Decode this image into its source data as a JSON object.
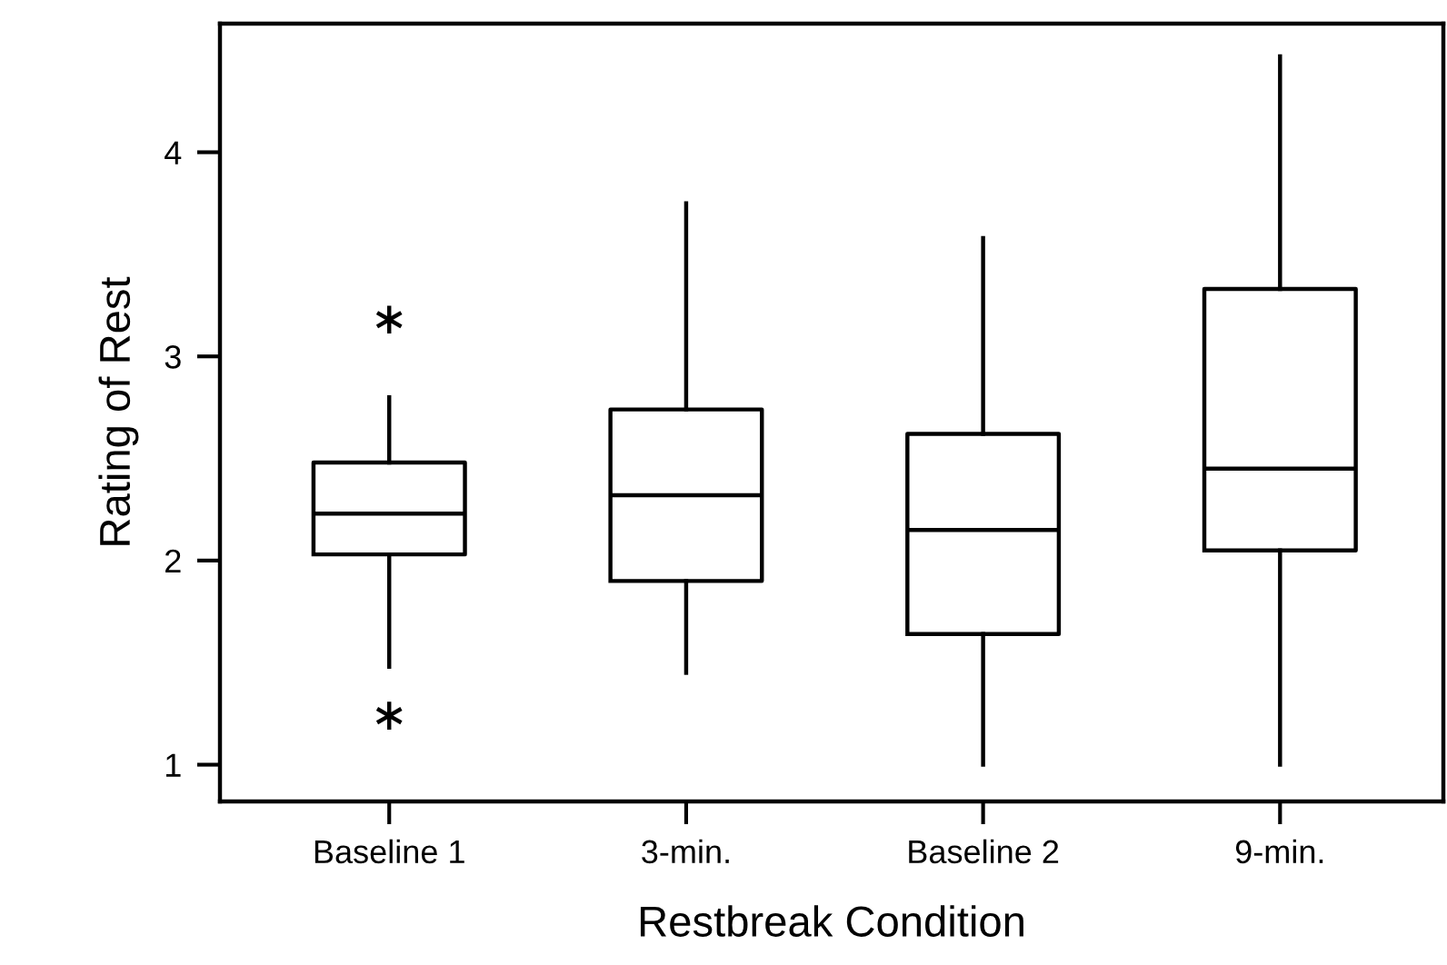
{
  "chart_data": {
    "type": "box",
    "xlabel": "Restbreak Condition",
    "ylabel": "Rating of Rest",
    "categories": [
      "Baseline 1",
      "3-min.",
      "Baseline 2",
      "9-min."
    ],
    "boxes": [
      {
        "low": 1.48,
        "q1": 2.03,
        "median": 2.23,
        "q3": 2.48,
        "high": 2.8,
        "outliers": [
          3.18,
          1.24
        ]
      },
      {
        "low": 1.45,
        "q1": 1.9,
        "median": 2.32,
        "q3": 2.74,
        "high": 3.75
      },
      {
        "low": 1.0,
        "q1": 1.64,
        "median": 2.15,
        "q3": 2.62,
        "high": 3.58
      },
      {
        "low": 1.0,
        "q1": 2.05,
        "median": 2.45,
        "q3": 3.33,
        "high": 4.47
      }
    ],
    "ylim": [
      0.82,
      4.63
    ],
    "yticks": [
      1,
      2,
      3,
      4
    ],
    "grid": false
  }
}
